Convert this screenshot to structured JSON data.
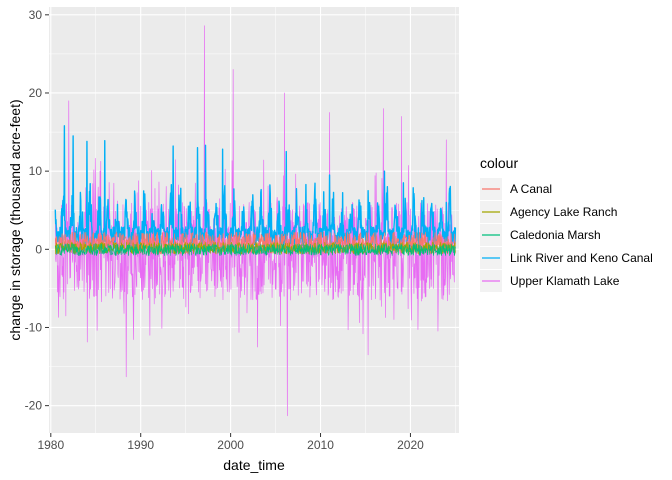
{
  "chart_data": {
    "type": "line",
    "title": "",
    "xlabel": "date_time",
    "ylabel": "change in storage (thousand acre-feet)",
    "xlim": [
      1979.8,
      2025.4
    ],
    "ylim": [
      -23.5,
      31
    ],
    "x_ticks": [
      1980,
      1990,
      2000,
      2010,
      2020
    ],
    "y_ticks": [
      -20,
      -10,
      0,
      10,
      20,
      30
    ],
    "grid": true,
    "legend": {
      "title": "colour",
      "position": "right"
    },
    "colors": {
      "panel_bg": "#EBEBEB",
      "grid_major": "#FFFFFF"
    },
    "series": [
      {
        "name": "A Canal",
        "color": "#F8766D",
        "x_start": 1980.5,
        "x_end": 2025.0,
        "typical_range": [
          -0.6,
          2.2
        ],
        "notable_values": [
          [
            1983.5,
            1.9
          ],
          [
            1999.2,
            2.0
          ],
          [
            2009.0,
            1.8
          ]
        ]
      },
      {
        "name": "Agency Lake Ranch",
        "color": "#A3A500",
        "x_start": 1980.5,
        "x_end": 2025.0,
        "typical_range": [
          -0.6,
          0.9
        ],
        "notable_values": [
          [
            2002.0,
            0.8
          ],
          [
            2015.0,
            -0.5
          ]
        ]
      },
      {
        "name": "Caledonia Marsh",
        "color": "#00BF7D",
        "x_start": 1980.5,
        "x_end": 2025.0,
        "typical_range": [
          -0.8,
          0.7
        ],
        "notable_values": [
          [
            2005.5,
            -0.7
          ],
          [
            2012.0,
            0.6
          ]
        ]
      },
      {
        "name": "Link River and Keno Canal",
        "color": "#00B0F6",
        "x_start": 1980.5,
        "x_end": 2025.0,
        "typical_range": [
          0.5,
          4.5
        ],
        "notable_values": [
          [
            1981.5,
            15.8
          ],
          [
            1982.5,
            14.5
          ],
          [
            1984.0,
            13.8
          ],
          [
            1986.0,
            13.9
          ],
          [
            1993.6,
            13.2
          ],
          [
            1996.3,
            13.0
          ],
          [
            1997.2,
            13.3
          ],
          [
            1999.1,
            12.8
          ],
          [
            2006.2,
            12.5
          ],
          [
            2011.0,
            9.5
          ],
          [
            2017.1,
            10.0
          ],
          [
            2019.2,
            8.5
          ],
          [
            2024.0,
            6.0
          ]
        ]
      },
      {
        "name": "Upper Klamath Lake",
        "color": "#E76BF3",
        "x_start": 1980.5,
        "x_end": 2025.0,
        "typical_range": [
          -6.5,
          6.0
        ],
        "notable_values": [
          [
            1982.0,
            19.0
          ],
          [
            1988.4,
            -16.3
          ],
          [
            1997.1,
            28.6
          ],
          [
            2000.3,
            23.0
          ],
          [
            2006.3,
            -21.3
          ],
          [
            2006.0,
            20.0
          ],
          [
            2011.0,
            17.5
          ],
          [
            2015.3,
            -13.5
          ],
          [
            2017.0,
            18.0
          ],
          [
            2019.0,
            17.0
          ],
          [
            1991.0,
            -11.0
          ],
          [
            2003.0,
            -12.5
          ],
          [
            2024.0,
            14.0
          ]
        ]
      }
    ]
  }
}
